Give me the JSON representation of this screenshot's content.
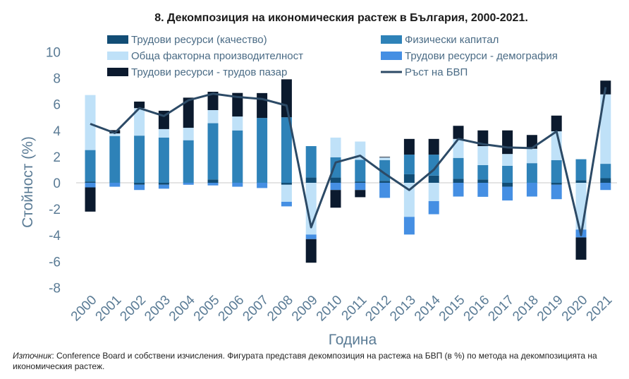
{
  "chart_data": {
    "type": "bar",
    "stacked": true,
    "title": "8. Декомпозиция на икономическия растеж в България, 2000-2021.",
    "xlabel": "Година",
    "ylabel": "Стойност (%)",
    "ylim": [
      -8,
      10
    ],
    "yticks": [
      -8,
      -6,
      -4,
      -2,
      0,
      2,
      4,
      6,
      8,
      10
    ],
    "legend_position": "top",
    "categories": [
      "2000",
      "2001",
      "2002",
      "2003",
      "2004",
      "2005",
      "2006",
      "2007",
      "2008",
      "2009",
      "2010",
      "2011",
      "2012",
      "2013",
      "2014",
      "2015",
      "2016",
      "2017",
      "2018",
      "2019",
      "2020",
      "2021"
    ],
    "series": [
      {
        "name": "Трудови ресурси (качество)",
        "type": "bar",
        "color": "#124d75",
        "values": [
          0.1,
          0,
          -0.15,
          -0.15,
          0,
          0.25,
          0,
          0,
          -0.15,
          0.4,
          0.4,
          0.1,
          0.15,
          0.65,
          0.55,
          0.3,
          0.25,
          -0.3,
          0,
          -0.15,
          0.2,
          0.35
        ]
      },
      {
        "name": "Физически капитал",
        "type": "bar",
        "color": "#2e82b8",
        "values": [
          2.4,
          3.57,
          3.6,
          3.45,
          3.25,
          4.3,
          4.0,
          4.95,
          5.0,
          2.4,
          1.55,
          1.65,
          1.58,
          1.5,
          1.6,
          1.6,
          1.1,
          1.3,
          1.5,
          1.73,
          1.6,
          1.1
        ]
      },
      {
        "name": "Обща факторна производителност",
        "type": "bar",
        "color": "#bfe1f8",
        "values": [
          4.2,
          0.2,
          2.1,
          0.65,
          0.95,
          1.0,
          1.06,
          0,
          -1.3,
          -3.95,
          1.5,
          1.4,
          0.2,
          -2.6,
          -1.4,
          1.45,
          1.45,
          0.9,
          1.1,
          2.2,
          -3.57,
          5.3
        ]
      },
      {
        "name": "Трудови ресурси - демография",
        "type": "bar",
        "color": "#458fe3",
        "values": [
          -0.35,
          -0.3,
          -0.4,
          -0.3,
          -0.15,
          -0.2,
          -0.3,
          -0.4,
          -0.35,
          -0.35,
          -0.55,
          -0.55,
          -1.15,
          -1.35,
          -1.0,
          -1.05,
          -1.07,
          -1.05,
          -1.05,
          -1.1,
          -0.6,
          -0.55
        ]
      },
      {
        "name": "Трудови ресурси - трудов пазар",
        "type": "bar",
        "color": "#0b1a2e",
        "values": [
          -1.85,
          0.25,
          0.5,
          1.4,
          2.3,
          1.4,
          1.8,
          1.9,
          2.9,
          -1.8,
          -1.35,
          -0.55,
          0.05,
          1.2,
          1.2,
          1.0,
          1.2,
          1.8,
          1.05,
          1.2,
          -1.7,
          1.05
        ]
      },
      {
        "name": "Ръст на БВП",
        "type": "line",
        "color": "#2c4a66",
        "values": [
          4.5,
          3.8,
          5.7,
          5.1,
          6.3,
          6.8,
          6.55,
          6.4,
          5.9,
          -3.4,
          1.55,
          2.07,
          0.7,
          -0.55,
          1.0,
          3.35,
          2.95,
          2.7,
          2.65,
          3.92,
          -4.0,
          7.3
        ]
      }
    ]
  },
  "footer": {
    "source_label": "Източник",
    "source_text": ": Conference Board и собствени изчисления. Фигурата представя декомпозиция на растежа на БВП (в %) по метода на декомпозицията на икономическия растеж."
  }
}
